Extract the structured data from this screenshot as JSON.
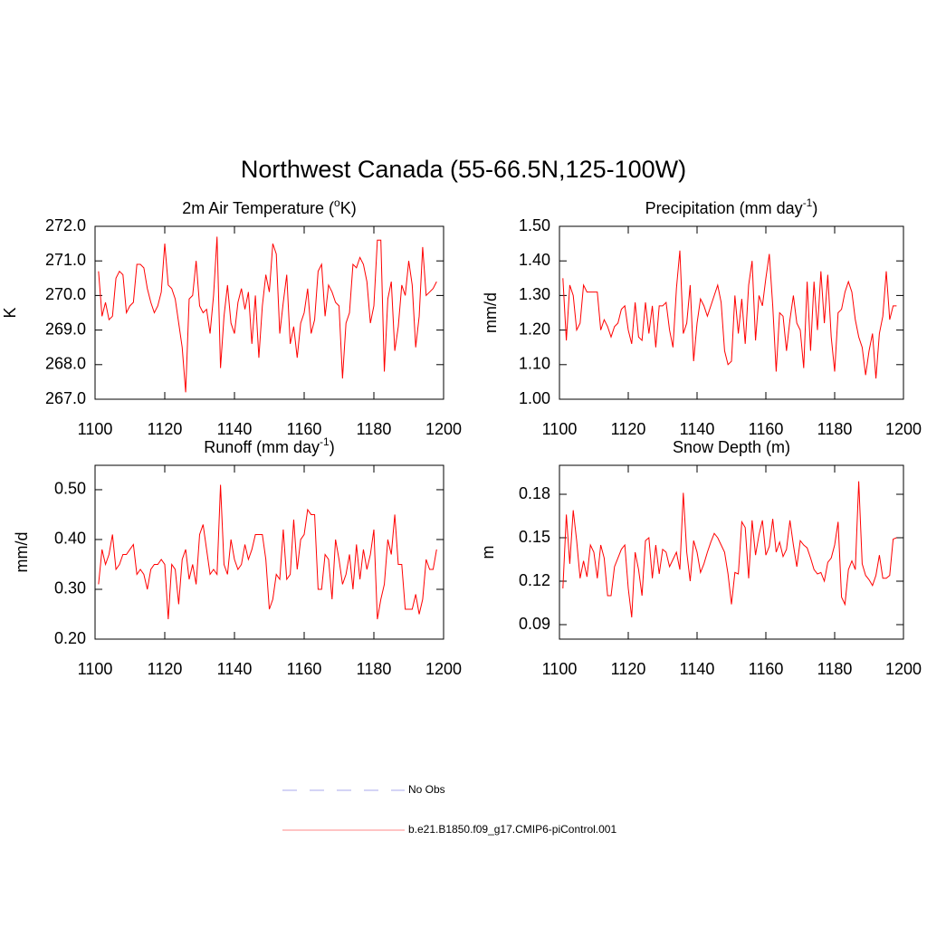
{
  "title": "Northwest Canada (55-66.5N,125-100W)",
  "legend": [
    {
      "name": "No Obs",
      "color": "#aaaaee",
      "dash": true
    },
    {
      "name": "b.e21.B1850.f09_g17.CMIP6-piControl.001",
      "color": "#ff8888",
      "dash": false
    }
  ],
  "chart_data": [
    {
      "type": "line",
      "title": [
        "2m Air Temperature (",
        "o",
        "K)"
      ],
      "y_label": "K",
      "color": "#ff0000",
      "xlim": [
        1100,
        1200
      ],
      "xticks": [
        1100,
        1120,
        1140,
        1160,
        1180,
        1200
      ],
      "ylim": [
        267,
        272
      ],
      "yticks": [
        {
          "value": 267,
          "label": "267.0"
        },
        {
          "value": 268,
          "label": "268.0"
        },
        {
          "value": 269,
          "label": "269.0"
        },
        {
          "value": 270,
          "label": "270.0"
        },
        {
          "value": 271,
          "label": "271.0"
        },
        {
          "value": 272,
          "label": "272.0"
        }
      ],
      "x": [
        1101,
        1102,
        1103,
        1104,
        1105,
        1106,
        1107,
        1108,
        1109,
        1110,
        1111,
        1112,
        1113,
        1114,
        1115,
        1116,
        1117,
        1118,
        1119,
        1120,
        1121,
        1122,
        1123,
        1124,
        1125,
        1126,
        1127,
        1128,
        1129,
        1130,
        1131,
        1132,
        1133,
        1134,
        1135,
        1136,
        1137,
        1138,
        1139,
        1140,
        1141,
        1142,
        1143,
        1144,
        1145,
        1146,
        1147,
        1148,
        1149,
        1150,
        1151,
        1152,
        1153,
        1154,
        1155,
        1156,
        1157,
        1158,
        1159,
        1160,
        1161,
        1162,
        1163,
        1164,
        1165,
        1166,
        1167,
        1168,
        1169,
        1170,
        1171,
        1172,
        1173,
        1174,
        1175,
        1176,
        1177,
        1178,
        1179,
        1180,
        1181,
        1182,
        1183,
        1184,
        1185,
        1186,
        1187,
        1188,
        1189,
        1190,
        1191,
        1192,
        1193,
        1194,
        1195,
        1196,
        1197,
        1198
      ],
      "values": [
        270.7,
        269.4,
        269.8,
        269.3,
        269.4,
        270.5,
        270.7,
        270.6,
        269.5,
        269.7,
        269.8,
        270.9,
        270.9,
        270.8,
        270.2,
        269.8,
        269.5,
        269.7,
        270.1,
        271.5,
        270.3,
        270.2,
        269.9,
        269.2,
        268.5,
        267.2,
        269.9,
        270.0,
        271.0,
        269.7,
        269.5,
        269.6,
        268.9,
        270.0,
        271.7,
        267.9,
        269.4,
        270.3,
        269.2,
        268.9,
        269.8,
        270.2,
        269.6,
        270.1,
        268.6,
        270.0,
        268.2,
        269.7,
        270.6,
        270.1,
        271.5,
        271.2,
        268.9,
        269.8,
        270.6,
        268.6,
        269.1,
        268.2,
        269.2,
        269.5,
        270.2,
        268.9,
        269.3,
        270.7,
        270.9,
        269.4,
        270.3,
        270.1,
        269.8,
        269.7,
        267.6,
        269.2,
        269.5,
        270.9,
        270.8,
        271.1,
        270.9,
        270.4,
        269.2,
        269.7,
        271.6,
        271.6,
        267.8,
        269.9,
        270.4,
        268.4,
        269.1,
        270.3,
        270.0,
        271.0,
        270.3,
        268.5,
        269.4,
        271.4,
        270.0,
        270.1,
        270.2,
        270.4
      ]
    },
    {
      "type": "line",
      "title": [
        "Precipitation (mm day",
        "-1",
        ")"
      ],
      "y_label": "mm/d",
      "color": "#ff0000",
      "xlim": [
        1100,
        1200
      ],
      "xticks": [
        1100,
        1120,
        1140,
        1160,
        1180,
        1200
      ],
      "ylim": [
        1.0,
        1.5
      ],
      "yticks": [
        {
          "value": 1.0,
          "label": "1.00"
        },
        {
          "value": 1.1,
          "label": "1.10"
        },
        {
          "value": 1.2,
          "label": "1.20"
        },
        {
          "value": 1.3,
          "label": "1.30"
        },
        {
          "value": 1.4,
          "label": "1.40"
        },
        {
          "value": 1.5,
          "label": "1.50"
        }
      ],
      "x": [
        1101,
        1102,
        1103,
        1104,
        1105,
        1106,
        1107,
        1108,
        1109,
        1110,
        1111,
        1112,
        1113,
        1114,
        1115,
        1116,
        1117,
        1118,
        1119,
        1120,
        1121,
        1122,
        1123,
        1124,
        1125,
        1126,
        1127,
        1128,
        1129,
        1130,
        1131,
        1132,
        1133,
        1134,
        1135,
        1136,
        1137,
        1138,
        1139,
        1140,
        1141,
        1142,
        1143,
        1144,
        1145,
        1146,
        1147,
        1148,
        1149,
        1150,
        1151,
        1152,
        1153,
        1154,
        1155,
        1156,
        1157,
        1158,
        1159,
        1160,
        1161,
        1162,
        1163,
        1164,
        1165,
        1166,
        1167,
        1168,
        1169,
        1170,
        1171,
        1172,
        1173,
        1174,
        1175,
        1176,
        1177,
        1178,
        1179,
        1180,
        1181,
        1182,
        1183,
        1184,
        1185,
        1186,
        1187,
        1188,
        1189,
        1190,
        1191,
        1192,
        1193,
        1194,
        1195,
        1196,
        1197,
        1198
      ],
      "values": [
        1.35,
        1.17,
        1.33,
        1.3,
        1.2,
        1.22,
        1.33,
        1.31,
        1.31,
        1.31,
        1.31,
        1.2,
        1.23,
        1.21,
        1.18,
        1.21,
        1.22,
        1.26,
        1.27,
        1.2,
        1.16,
        1.28,
        1.18,
        1.17,
        1.28,
        1.19,
        1.27,
        1.15,
        1.27,
        1.27,
        1.28,
        1.2,
        1.15,
        1.32,
        1.43,
        1.19,
        1.22,
        1.33,
        1.11,
        1.22,
        1.29,
        1.27,
        1.24,
        1.27,
        1.3,
        1.33,
        1.28,
        1.14,
        1.1,
        1.11,
        1.3,
        1.19,
        1.29,
        1.16,
        1.33,
        1.4,
        1.17,
        1.3,
        1.27,
        1.35,
        1.42,
        1.27,
        1.08,
        1.25,
        1.24,
        1.14,
        1.23,
        1.3,
        1.22,
        1.2,
        1.09,
        1.34,
        1.14,
        1.34,
        1.2,
        1.37,
        1.22,
        1.36,
        1.18,
        1.08,
        1.25,
        1.26,
        1.31,
        1.34,
        1.31,
        1.23,
        1.18,
        1.15,
        1.07,
        1.14,
        1.19,
        1.06,
        1.19,
        1.24,
        1.37,
        1.23,
        1.27,
        1.27
      ]
    },
    {
      "type": "line",
      "title": [
        "Runoff (mm day",
        "-1",
        ")"
      ],
      "y_label": "mm/d",
      "color": "#ff0000",
      "xlim": [
        1100,
        1200
      ],
      "xticks": [
        1100,
        1120,
        1140,
        1160,
        1180,
        1200
      ],
      "ylim": [
        0.2,
        0.549
      ],
      "yticks": [
        {
          "value": 0.2,
          "label": "0.20"
        },
        {
          "value": 0.3,
          "label": "0.30"
        },
        {
          "value": 0.4,
          "label": "0.40"
        },
        {
          "value": 0.5,
          "label": "0.50"
        }
      ],
      "x": [
        1101,
        1102,
        1103,
        1104,
        1105,
        1106,
        1107,
        1108,
        1109,
        1110,
        1111,
        1112,
        1113,
        1114,
        1115,
        1116,
        1117,
        1118,
        1119,
        1120,
        1121,
        1122,
        1123,
        1124,
        1125,
        1126,
        1127,
        1128,
        1129,
        1130,
        1131,
        1132,
        1133,
        1134,
        1135,
        1136,
        1137,
        1138,
        1139,
        1140,
        1141,
        1142,
        1143,
        1144,
        1145,
        1146,
        1147,
        1148,
        1149,
        1150,
        1151,
        1152,
        1153,
        1154,
        1155,
        1156,
        1157,
        1158,
        1159,
        1160,
        1161,
        1162,
        1163,
        1164,
        1165,
        1166,
        1167,
        1168,
        1169,
        1170,
        1171,
        1172,
        1173,
        1174,
        1175,
        1176,
        1177,
        1178,
        1179,
        1180,
        1181,
        1182,
        1183,
        1184,
        1185,
        1186,
        1187,
        1188,
        1189,
        1190,
        1191,
        1192,
        1193,
        1194,
        1195,
        1196,
        1197,
        1198
      ],
      "values": [
        0.31,
        0.38,
        0.35,
        0.37,
        0.41,
        0.34,
        0.35,
        0.37,
        0.37,
        0.38,
        0.39,
        0.33,
        0.34,
        0.33,
        0.3,
        0.34,
        0.35,
        0.35,
        0.36,
        0.35,
        0.24,
        0.35,
        0.34,
        0.27,
        0.36,
        0.38,
        0.32,
        0.35,
        0.31,
        0.41,
        0.43,
        0.38,
        0.33,
        0.34,
        0.33,
        0.51,
        0.35,
        0.33,
        0.4,
        0.36,
        0.34,
        0.35,
        0.39,
        0.36,
        0.38,
        0.41,
        0.41,
        0.41,
        0.36,
        0.26,
        0.28,
        0.33,
        0.32,
        0.42,
        0.32,
        0.33,
        0.44,
        0.34,
        0.4,
        0.41,
        0.46,
        0.45,
        0.45,
        0.3,
        0.3,
        0.37,
        0.36,
        0.28,
        0.4,
        0.36,
        0.31,
        0.33,
        0.37,
        0.3,
        0.39,
        0.32,
        0.38,
        0.34,
        0.37,
        0.42,
        0.24,
        0.28,
        0.31,
        0.4,
        0.37,
        0.45,
        0.35,
        0.35,
        0.26,
        0.26,
        0.26,
        0.29,
        0.25,
        0.28,
        0.36,
        0.34,
        0.34,
        0.38
      ]
    },
    {
      "type": "line",
      "title": [
        "Snow Depth (m)"
      ],
      "y_label": "m",
      "color": "#ff0000",
      "xlim": [
        1100,
        1200
      ],
      "xticks": [
        1100,
        1120,
        1140,
        1160,
        1180,
        1200
      ],
      "ylim": [
        0.08,
        0.2
      ],
      "yticks": [
        0.09,
        0.12,
        0.15,
        0.18
      ],
      "x": [
        1101,
        1102,
        1103,
        1104,
        1105,
        1106,
        1107,
        1108,
        1109,
        1110,
        1111,
        1112,
        1113,
        1114,
        1115,
        1116,
        1117,
        1118,
        1119,
        1120,
        1121,
        1122,
        1123,
        1124,
        1125,
        1126,
        1127,
        1128,
        1129,
        1130,
        1131,
        1132,
        1133,
        1134,
        1135,
        1136,
        1137,
        1138,
        1139,
        1140,
        1141,
        1142,
        1143,
        1144,
        1145,
        1146,
        1147,
        1148,
        1149,
        1150,
        1151,
        1152,
        1153,
        1154,
        1155,
        1156,
        1157,
        1158,
        1159,
        1160,
        1161,
        1162,
        1163,
        1164,
        1165,
        1166,
        1167,
        1168,
        1169,
        1170,
        1171,
        1172,
        1173,
        1174,
        1175,
        1176,
        1177,
        1178,
        1179,
        1180,
        1181,
        1182,
        1183,
        1184,
        1185,
        1186,
        1187,
        1188,
        1189,
        1190,
        1191,
        1192,
        1193,
        1194,
        1195,
        1196,
        1197,
        1198
      ],
      "values": [
        0.115,
        0.166,
        0.132,
        0.169,
        0.148,
        0.122,
        0.134,
        0.123,
        0.145,
        0.14,
        0.122,
        0.145,
        0.136,
        0.11,
        0.11,
        0.13,
        0.136,
        0.142,
        0.145,
        0.115,
        0.095,
        0.14,
        0.128,
        0.11,
        0.148,
        0.15,
        0.122,
        0.145,
        0.125,
        0.142,
        0.14,
        0.13,
        0.135,
        0.14,
        0.128,
        0.181,
        0.14,
        0.12,
        0.148,
        0.14,
        0.126,
        0.132,
        0.14,
        0.147,
        0.153,
        0.15,
        0.145,
        0.14,
        0.125,
        0.104,
        0.126,
        0.125,
        0.161,
        0.157,
        0.122,
        0.162,
        0.138,
        0.152,
        0.162,
        0.138,
        0.144,
        0.163,
        0.14,
        0.147,
        0.137,
        0.142,
        0.162,
        0.145,
        0.13,
        0.148,
        0.145,
        0.143,
        0.136,
        0.128,
        0.125,
        0.126,
        0.12,
        0.133,
        0.136,
        0.145,
        0.161,
        0.109,
        0.104,
        0.128,
        0.134,
        0.128,
        0.189,
        0.132,
        0.124,
        0.121,
        0.117,
        0.124,
        0.138,
        0.122,
        0.122,
        0.124,
        0.149,
        0.15
      ]
    }
  ]
}
